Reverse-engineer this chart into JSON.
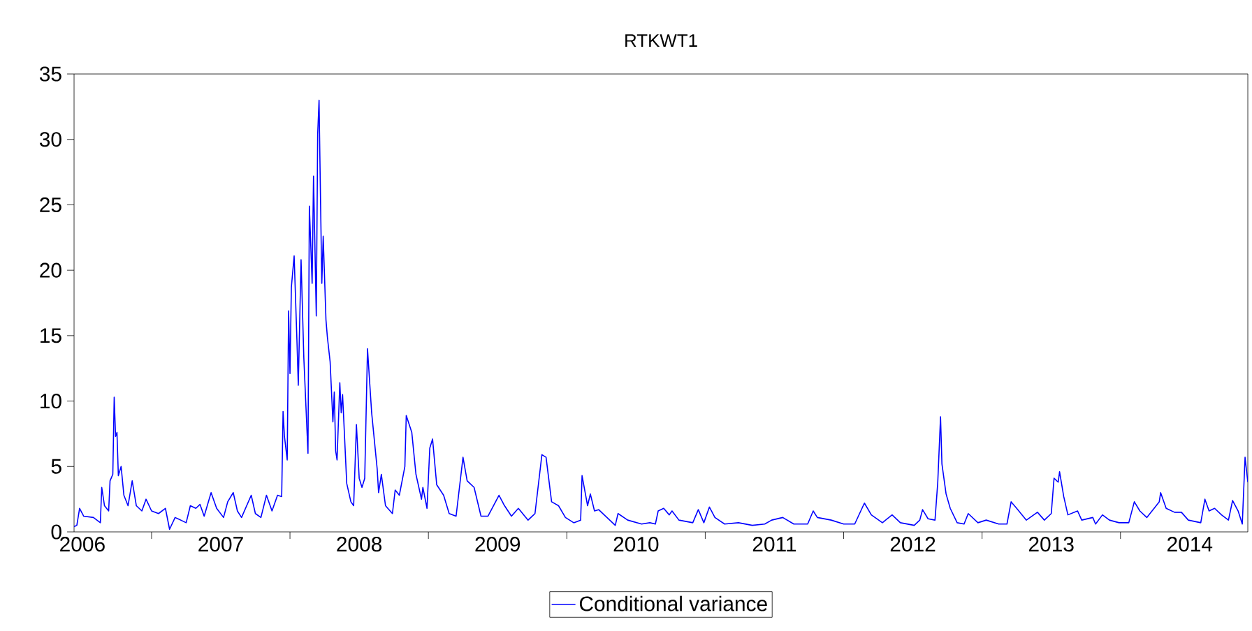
{
  "chart_data": {
    "type": "line",
    "title": "RTKWT1",
    "legend": "bottom",
    "marker": "none",
    "line_style": "solid",
    "grid": false,
    "xlim": [
      2006.44,
      2014.92
    ],
    "ylim": [
      0,
      35
    ],
    "yticks": [
      0,
      5,
      10,
      15,
      20,
      25,
      30,
      35
    ],
    "xticks": [
      {
        "value": 2006.5,
        "label": "2006"
      },
      {
        "value": 2007,
        "label": null
      },
      {
        "value": 2007.5,
        "label": "2007"
      },
      {
        "value": 2008,
        "label": null
      },
      {
        "value": 2008.5,
        "label": "2008"
      },
      {
        "value": 2009,
        "label": null
      },
      {
        "value": 2009.5,
        "label": "2009"
      },
      {
        "value": 2010,
        "label": null
      },
      {
        "value": 2010.5,
        "label": "2010"
      },
      {
        "value": 2011,
        "label": null
      },
      {
        "value": 2011.5,
        "label": "2011"
      },
      {
        "value": 2012,
        "label": null
      },
      {
        "value": 2012.5,
        "label": "2012"
      },
      {
        "value": 2013,
        "label": null
      },
      {
        "value": 2013.5,
        "label": "2013"
      },
      {
        "value": 2014,
        "label": null
      },
      {
        "value": 2014.5,
        "label": "2014"
      }
    ],
    "series": [
      {
        "name": "Conditional variance",
        "color": "#0000ff",
        "x": [
          2006.44,
          2006.46,
          2006.48,
          2006.51,
          2006.58,
          2006.63,
          2006.64,
          2006.66,
          2006.69,
          2006.7,
          2006.72,
          2006.73,
          2006.74,
          2006.75,
          2006.76,
          2006.78,
          2006.8,
          2006.83,
          2006.86,
          2006.89,
          2006.93,
          2006.96,
          2007.0,
          2007.05,
          2007.1,
          2007.13,
          2007.17,
          2007.25,
          2007.28,
          2007.32,
          2007.35,
          2007.38,
          2007.43,
          2007.47,
          2007.52,
          2007.55,
          2007.59,
          2007.62,
          2007.65,
          2007.72,
          2007.75,
          2007.79,
          2007.83,
          2007.87,
          2007.91,
          2007.94,
          2007.95,
          2007.96,
          2007.98,
          2007.99,
          2008.0,
          2008.01,
          2008.03,
          2008.05,
          2008.06,
          2008.08,
          2008.1,
          2008.13,
          2008.14,
          2008.16,
          2008.17,
          2008.19,
          2008.2,
          2008.21,
          2008.22,
          2008.23,
          2008.24,
          2008.26,
          2008.27,
          2008.29,
          2008.31,
          2008.32,
          2008.33,
          2008.34,
          2008.36,
          2008.37,
          2008.38,
          2008.41,
          2008.44,
          2008.46,
          2008.48,
          2008.5,
          2008.52,
          2008.54,
          2008.56,
          2008.59,
          2008.63,
          2008.64,
          2008.66,
          2008.69,
          2008.74,
          2008.76,
          2008.79,
          2008.83,
          2008.84,
          2008.88,
          2008.91,
          2008.95,
          2008.96,
          2008.99,
          2009.01,
          2009.03,
          2009.06,
          2009.11,
          2009.15,
          2009.2,
          2009.25,
          2009.28,
          2009.33,
          2009.38,
          2009.43,
          2009.51,
          2009.55,
          2009.6,
          2009.65,
          2009.72,
          2009.77,
          2009.82,
          2009.85,
          2009.89,
          2009.94,
          2009.99,
          2010.05,
          2010.1,
          2010.11,
          2010.15,
          2010.17,
          2010.2,
          2010.23,
          2010.29,
          2010.35,
          2010.37,
          2010.44,
          2010.54,
          2010.6,
          2010.64,
          2010.66,
          2010.7,
          2010.74,
          2010.76,
          2010.81,
          2010.91,
          2010.95,
          2010.99,
          2011.03,
          2011.07,
          2011.14,
          2011.24,
          2011.34,
          2011.43,
          2011.48,
          2011.56,
          2011.64,
          2011.74,
          2011.78,
          2011.81,
          2011.91,
          2012.0,
          2012.08,
          2012.15,
          2012.2,
          2012.28,
          2012.35,
          2012.41,
          2012.51,
          2012.55,
          2012.57,
          2012.61,
          2012.66,
          2012.68,
          2012.7,
          2012.71,
          2012.74,
          2012.77,
          2012.82,
          2012.87,
          2012.9,
          2012.97,
          2013.03,
          2013.12,
          2013.18,
          2013.21,
          2013.25,
          2013.32,
          2013.4,
          2013.45,
          2013.5,
          2013.52,
          2013.55,
          2013.56,
          2013.59,
          2013.62,
          2013.69,
          2013.72,
          2013.8,
          2013.82,
          2013.87,
          2013.92,
          2013.99,
          2014.06,
          2014.1,
          2014.14,
          2014.19,
          2014.28,
          2014.29,
          2014.33,
          2014.39,
          2014.44,
          2014.49,
          2014.58,
          2014.61,
          2014.64,
          2014.68,
          2014.73,
          2014.78,
          2014.81,
          2014.85,
          2014.88,
          2014.9,
          2014.92
        ],
        "values": [
          0.4,
          0.5,
          1.8,
          1.2,
          1.1,
          0.7,
          3.4,
          2.0,
          1.6,
          3.9,
          4.4,
          10.3,
          7.3,
          7.6,
          4.3,
          5.0,
          2.8,
          2.0,
          3.9,
          2.0,
          1.6,
          2.5,
          1.6,
          1.4,
          1.8,
          0.2,
          1.1,
          0.7,
          2.0,
          1.8,
          2.1,
          1.2,
          3.0,
          1.8,
          1.1,
          2.3,
          3.0,
          1.6,
          1.1,
          2.8,
          1.4,
          1.1,
          2.8,
          1.6,
          2.8,
          2.7,
          9.2,
          7.3,
          5.5,
          16.9,
          12.1,
          18.7,
          21.1,
          14.7,
          11.2,
          20.8,
          13.3,
          6.0,
          24.9,
          19.0,
          27.2,
          16.5,
          30.4,
          33.0,
          25.8,
          19.0,
          22.6,
          16.2,
          14.9,
          13.0,
          8.4,
          10.7,
          6.2,
          5.5,
          11.4,
          9.1,
          10.5,
          3.7,
          2.3,
          2.0,
          8.2,
          4.1,
          3.4,
          4.1,
          14.0,
          9.1,
          4.8,
          3.0,
          4.4,
          2.0,
          1.4,
          3.2,
          2.8,
          5.0,
          8.9,
          7.6,
          4.4,
          2.5,
          3.4,
          1.8,
          6.4,
          7.1,
          3.6,
          2.8,
          1.4,
          1.2,
          5.7,
          3.9,
          3.4,
          1.2,
          1.2,
          2.8,
          2.0,
          1.2,
          1.8,
          0.9,
          1.4,
          5.9,
          5.7,
          2.3,
          2.0,
          1.1,
          0.7,
          0.9,
          4.3,
          2.0,
          2.9,
          1.6,
          1.7,
          1.1,
          0.5,
          1.4,
          0.9,
          0.6,
          0.7,
          0.6,
          1.6,
          1.8,
          1.3,
          1.6,
          0.9,
          0.7,
          1.7,
          0.7,
          1.9,
          1.1,
          0.6,
          0.7,
          0.5,
          0.6,
          0.9,
          1.1,
          0.6,
          0.6,
          1.6,
          1.1,
          0.9,
          0.6,
          0.6,
          2.2,
          1.3,
          0.7,
          1.3,
          0.7,
          0.5,
          0.9,
          1.7,
          1.0,
          0.9,
          3.8,
          8.8,
          5.2,
          2.9,
          1.8,
          0.7,
          0.6,
          1.4,
          0.7,
          0.9,
          0.6,
          0.6,
          2.3,
          1.8,
          0.9,
          1.5,
          0.9,
          1.4,
          4.1,
          3.8,
          4.6,
          2.7,
          1.3,
          1.6,
          0.9,
          1.1,
          0.6,
          1.3,
          0.9,
          0.7,
          0.7,
          2.3,
          1.6,
          1.1,
          2.3,
          3.0,
          1.8,
          1.5,
          1.5,
          0.9,
          0.7,
          2.5,
          1.6,
          1.8,
          1.3,
          0.9,
          2.4,
          1.6,
          0.6,
          5.7,
          3.8
        ]
      }
    ]
  }
}
